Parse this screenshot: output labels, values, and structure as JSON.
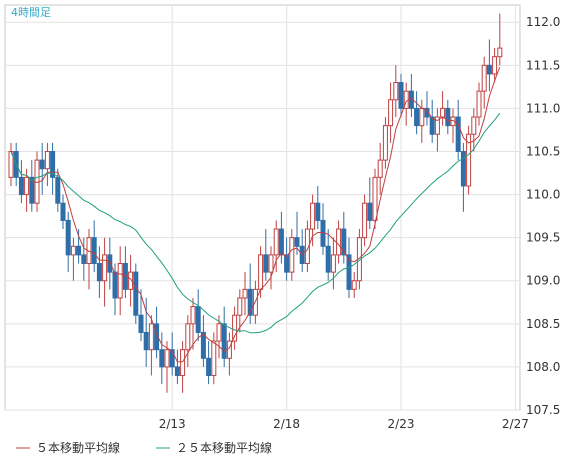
{
  "chart_data": {
    "type": "candlestick",
    "title": "4時間足",
    "ylim": [
      107.5,
      112.2
    ],
    "y_ticks": [
      "112.0",
      "111.5",
      "111.0",
      "110.5",
      "110.0",
      "109.5",
      "109.0",
      "108.5",
      "108.0",
      "107.5"
    ],
    "x_ticks": [
      {
        "label": "2/13",
        "index": 31
      },
      {
        "label": "2/18",
        "index": 53
      },
      {
        "label": "2/23",
        "index": 75
      },
      {
        "label": "2/27",
        "index": 97
      }
    ],
    "candles": [
      [
        110.2,
        110.6,
        110.1,
        110.5
      ],
      [
        110.5,
        110.6,
        110.1,
        110.2
      ],
      [
        110.2,
        110.4,
        109.9,
        110.0
      ],
      [
        110.0,
        110.3,
        109.8,
        110.2
      ],
      [
        110.2,
        110.4,
        109.8,
        109.9
      ],
      [
        109.9,
        110.5,
        109.8,
        110.4
      ],
      [
        110.4,
        110.6,
        110.0,
        110.3
      ],
      [
        110.3,
        110.6,
        110.1,
        110.5
      ],
      [
        110.5,
        110.6,
        110.0,
        110.2
      ],
      [
        110.2,
        110.3,
        109.8,
        109.9
      ],
      [
        109.9,
        110.0,
        109.6,
        109.7
      ],
      [
        109.7,
        109.8,
        109.1,
        109.3
      ],
      [
        109.3,
        109.5,
        109.0,
        109.4
      ],
      [
        109.4,
        109.6,
        109.2,
        109.3
      ],
      [
        109.3,
        109.5,
        109.0,
        109.2
      ],
      [
        109.2,
        109.6,
        108.9,
        109.5
      ],
      [
        109.5,
        109.7,
        109.1,
        109.2
      ],
      [
        109.2,
        109.4,
        108.8,
        109.0
      ],
      [
        109.0,
        109.5,
        108.7,
        109.3
      ],
      [
        109.3,
        109.5,
        108.9,
        109.1
      ],
      [
        109.1,
        109.2,
        108.6,
        108.8
      ],
      [
        108.8,
        109.4,
        108.6,
        109.2
      ],
      [
        109.2,
        109.4,
        108.8,
        108.9
      ],
      [
        108.9,
        109.3,
        108.7,
        109.1
      ],
      [
        109.1,
        109.2,
        108.5,
        108.6
      ],
      [
        108.6,
        108.9,
        108.3,
        108.4
      ],
      [
        108.4,
        108.8,
        108.0,
        108.2
      ],
      [
        108.2,
        108.6,
        107.9,
        108.5
      ],
      [
        108.5,
        108.7,
        108.1,
        108.2
      ],
      [
        108.2,
        108.4,
        107.8,
        108.0
      ],
      [
        108.0,
        108.3,
        107.7,
        108.2
      ],
      [
        108.2,
        108.4,
        107.9,
        108.0
      ],
      [
        108.0,
        108.2,
        107.8,
        107.9
      ],
      [
        107.9,
        108.3,
        107.7,
        108.2
      ],
      [
        108.2,
        108.6,
        108.0,
        108.5
      ],
      [
        108.5,
        108.8,
        108.2,
        108.7
      ],
      [
        108.7,
        108.9,
        108.3,
        108.4
      ],
      [
        108.4,
        108.6,
        108.0,
        108.1
      ],
      [
        108.1,
        108.3,
        107.8,
        107.9
      ],
      [
        107.9,
        108.4,
        107.8,
        108.3
      ],
      [
        108.3,
        108.6,
        108.1,
        108.5
      ],
      [
        108.5,
        108.7,
        108.0,
        108.1
      ],
      [
        108.1,
        108.4,
        107.9,
        108.3
      ],
      [
        108.3,
        108.7,
        108.2,
        108.6
      ],
      [
        108.6,
        108.9,
        108.4,
        108.8
      ],
      [
        108.8,
        109.1,
        108.6,
        108.9
      ],
      [
        108.9,
        109.2,
        108.5,
        108.6
      ],
      [
        108.6,
        109.0,
        108.5,
        108.9
      ],
      [
        108.9,
        109.4,
        108.8,
        109.3
      ],
      [
        109.3,
        109.6,
        109.0,
        109.1
      ],
      [
        109.1,
        109.4,
        108.9,
        109.3
      ],
      [
        109.3,
        109.7,
        109.1,
        109.6
      ],
      [
        109.6,
        109.8,
        109.2,
        109.3
      ],
      [
        109.3,
        109.5,
        109.0,
        109.1
      ],
      [
        109.1,
        109.6,
        109.0,
        109.5
      ],
      [
        109.5,
        109.8,
        109.3,
        109.4
      ],
      [
        109.4,
        109.6,
        109.1,
        109.2
      ],
      [
        109.2,
        109.7,
        109.1,
        109.6
      ],
      [
        109.6,
        110.0,
        109.4,
        109.9
      ],
      [
        109.9,
        110.1,
        109.6,
        109.7
      ],
      [
        109.7,
        109.9,
        109.3,
        109.4
      ],
      [
        109.4,
        109.6,
        109.0,
        109.1
      ],
      [
        109.1,
        109.5,
        108.9,
        109.3
      ],
      [
        109.3,
        109.7,
        109.2,
        109.6
      ],
      [
        109.6,
        109.8,
        109.2,
        109.3
      ],
      [
        109.3,
        109.5,
        108.8,
        108.9
      ],
      [
        108.9,
        109.1,
        108.8,
        109.0
      ],
      [
        109.0,
        109.6,
        108.9,
        109.5
      ],
      [
        109.5,
        110.0,
        109.4,
        109.9
      ],
      [
        109.9,
        110.2,
        109.6,
        109.7
      ],
      [
        109.7,
        110.3,
        109.6,
        110.2
      ],
      [
        110.2,
        110.6,
        110.0,
        110.4
      ],
      [
        110.4,
        110.9,
        110.3,
        110.8
      ],
      [
        110.8,
        111.3,
        110.6,
        111.1
      ],
      [
        111.1,
        111.5,
        110.9,
        111.3
      ],
      [
        111.3,
        111.4,
        110.9,
        111.0
      ],
      [
        111.0,
        111.3,
        110.8,
        111.2
      ],
      [
        111.2,
        111.4,
        110.9,
        111.0
      ],
      [
        111.0,
        111.2,
        110.7,
        110.8
      ],
      [
        110.8,
        111.1,
        110.6,
        111.0
      ],
      [
        111.0,
        111.2,
        110.8,
        110.9
      ],
      [
        110.9,
        111.1,
        110.6,
        110.7
      ],
      [
        110.7,
        111.0,
        110.5,
        110.9
      ],
      [
        110.9,
        111.2,
        110.8,
        111.0
      ],
      [
        111.0,
        111.1,
        110.7,
        110.8
      ],
      [
        110.8,
        111.0,
        110.6,
        110.9
      ],
      [
        110.9,
        111.1,
        110.4,
        110.5
      ],
      [
        110.5,
        110.6,
        109.8,
        110.1
      ],
      [
        110.1,
        110.8,
        110.0,
        110.7
      ],
      [
        110.7,
        111.0,
        110.5,
        110.9
      ],
      [
        110.9,
        111.3,
        110.8,
        111.2
      ],
      [
        111.2,
        111.6,
        111.0,
        111.5
      ],
      [
        111.5,
        111.8,
        111.2,
        111.4
      ],
      [
        111.4,
        111.7,
        111.3,
        111.6
      ],
      [
        111.6,
        112.1,
        111.5,
        111.7
      ]
    ],
    "series": [
      {
        "name": "５本移動平均線",
        "color": "#c04040"
      },
      {
        "name": "２５本移動平均線",
        "color": "#20a080"
      }
    ],
    "colors": {
      "up": "#c04040",
      "down": "#2f6ea8",
      "grid": "#e2e2e2",
      "frame": "#c8c8c8"
    }
  }
}
